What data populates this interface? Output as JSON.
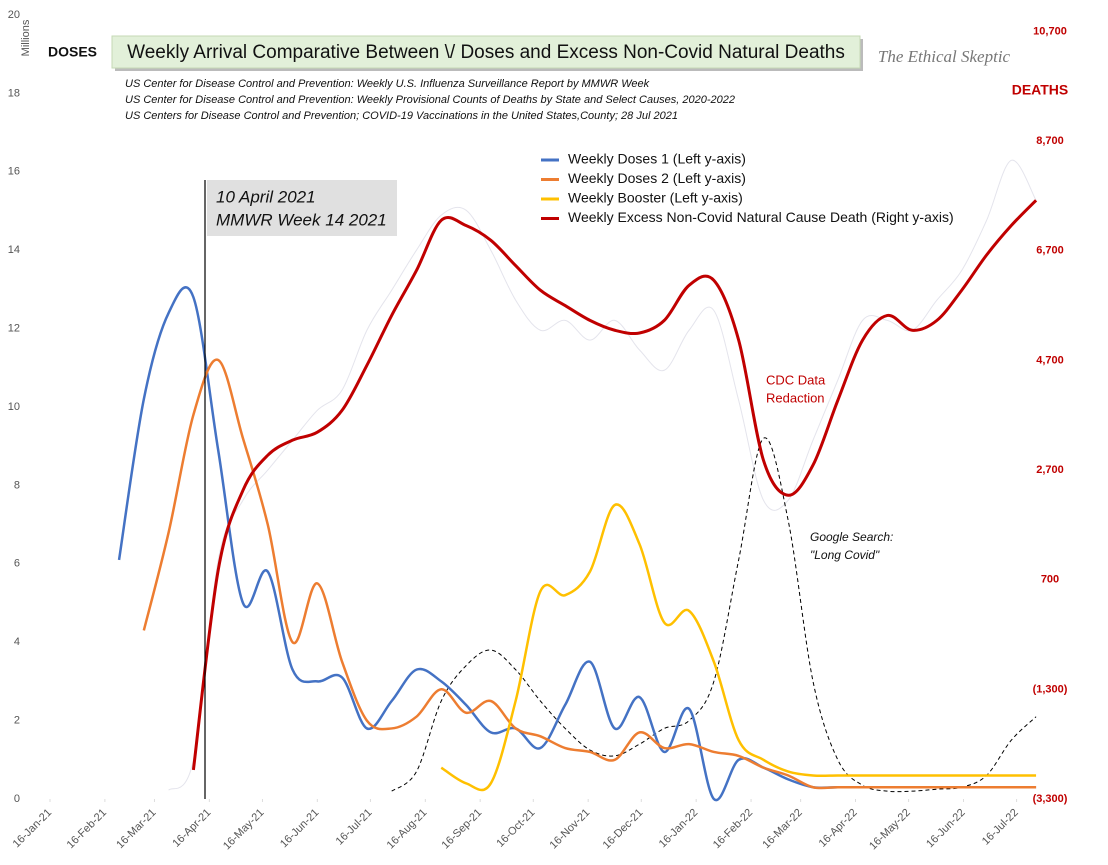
{
  "chart_data": {
    "type": "line",
    "title": "Weekly Arrival Comparative Between \\/ Doses and Excess Non-Covid Natural Deaths",
    "watermark": "The Ethical Skeptic",
    "sources": [
      "US Center for Disease Control and Prevention: Weekly U.S. Influenza Surveillance Report by MMWR Week",
      "US Center for Disease Control and Prevention: Weekly Provisional Counts of Deaths by State and Select Causes, 2020-2022",
      "US Centers for Disease Control and Prevention; COVID-19 Vaccinations in the United States,County; 28 Jul 2021"
    ],
    "y_unit": "Millions",
    "y_axis_label": "DOSES",
    "y2_axis_label": "DEATHS",
    "annotations": {
      "week_box": [
        "10 April 2021",
        "MMWR Week 14 2021"
      ],
      "redaction": [
        "CDC Data",
        "Redaction"
      ],
      "google": [
        "Google Search:",
        "\"Long Covid\""
      ]
    },
    "x": [
      "2021-02-24",
      "2021-03-10",
      "2021-03-24",
      "2021-04-07",
      "2021-04-21",
      "2021-05-05",
      "2021-05-19",
      "2021-06-02",
      "2021-06-16",
      "2021-06-30",
      "2021-07-14",
      "2021-07-28",
      "2021-08-11",
      "2021-08-25",
      "2021-09-08",
      "2021-09-22",
      "2021-10-06",
      "2021-10-20",
      "2021-11-03",
      "2021-11-17",
      "2021-12-01",
      "2021-12-15",
      "2021-12-29",
      "2022-01-12",
      "2022-01-26",
      "2022-02-09",
      "2022-02-23",
      "2022-03-09",
      "2022-03-23",
      "2022-04-06",
      "2022-04-20",
      "2022-05-04",
      "2022-05-18",
      "2022-06-01",
      "2022-06-15",
      "2022-06-29",
      "2022-07-13",
      "2022-07-27"
    ],
    "xlim": [
      "2021-01-03",
      "2022-08-05"
    ],
    "xticks": [
      {
        "value": "2021-01-16",
        "label": "16-Jan-21"
      },
      {
        "value": "2021-02-16",
        "label": "16-Feb-21"
      },
      {
        "value": "2021-03-16",
        "label": "16-Mar-21"
      },
      {
        "value": "2021-04-16",
        "label": "16-Apr-21"
      },
      {
        "value": "2021-05-16",
        "label": "16-May-21"
      },
      {
        "value": "2021-06-16",
        "label": "16-Jun-21"
      },
      {
        "value": "2021-07-16",
        "label": "16-Jul-21"
      },
      {
        "value": "2021-08-16",
        "label": "16-Aug-21"
      },
      {
        "value": "2021-09-16",
        "label": "16-Sep-21"
      },
      {
        "value": "2021-10-16",
        "label": "16-Oct-21"
      },
      {
        "value": "2021-11-16",
        "label": "16-Nov-21"
      },
      {
        "value": "2021-12-16",
        "label": "16-Dec-21"
      },
      {
        "value": "2022-01-16",
        "label": "16-Jan-22"
      },
      {
        "value": "2022-02-16",
        "label": "16-Feb-22"
      },
      {
        "value": "2022-03-16",
        "label": "16-Mar-22"
      },
      {
        "value": "2022-04-16",
        "label": "16-Apr-22"
      },
      {
        "value": "2022-05-16",
        "label": "16-May-22"
      },
      {
        "value": "2022-06-16",
        "label": "16-Jun-22"
      },
      {
        "value": "2022-07-16",
        "label": "16-Jul-22"
      }
    ],
    "ylim": [
      0,
      20
    ],
    "yticks": [
      0,
      2,
      4,
      6,
      8,
      10,
      12,
      14,
      16,
      18,
      20
    ],
    "y2lim": [
      -3300,
      11000
    ],
    "y2ticks": [
      {
        "value": -3300,
        "label": "(3,300)"
      },
      {
        "value": -1300,
        "label": "(1,300)"
      },
      700,
      {
        "value": 2700,
        "label": "2,700"
      },
      {
        "value": 4700,
        "label": "4,700"
      },
      {
        "value": 6700,
        "label": "6,700"
      },
      {
        "value": 8700,
        "label": "8,700"
      },
      {
        "value": 10700,
        "label": "10,700"
      }
    ],
    "series": [
      {
        "color": "#e4e4ec",
        "axis": "y2",
        "values": [
          null,
          null,
          -3140,
          -2590,
          1060,
          2150,
          2700,
          3245,
          3790,
          4160,
          5250,
          5980,
          6710,
          7350,
          7440,
          6710,
          5800,
          5250,
          5430,
          5070,
          5430,
          4890,
          4520,
          5250,
          5610,
          3970,
          2150,
          2150,
          3245,
          4340,
          5430,
          5430,
          5250,
          5800,
          6340,
          7250,
          8350,
          7620
        ]
      },
      {
        "color": "#000000",
        "dashed": true,
        "values": [
          null,
          null,
          null,
          null,
          null,
          null,
          null,
          null,
          null,
          null,
          null,
          0.2,
          0.7,
          2.5,
          3.4,
          3.8,
          3.3,
          2.5,
          1.8,
          1.25,
          1.1,
          1.4,
          1.8,
          2.0,
          3.0,
          6.1,
          9.2,
          7.1,
          3.0,
          1.0,
          0.35,
          0.2,
          0.2,
          0.25,
          0.3,
          0.6,
          1.5,
          2.1
        ]
      },
      {
        "name": "Weekly Doses 1 (Left y-axis)",
        "color": "#4472c4",
        "values": [
          6.1,
          10.2,
          12.4,
          12.8,
          8.9,
          5.0,
          5.8,
          3.3,
          3.0,
          3.1,
          1.8,
          2.5,
          3.3,
          3.0,
          2.4,
          1.7,
          1.8,
          1.3,
          2.4,
          3.5,
          1.8,
          2.6,
          1.2,
          2.3,
          0,
          1.0,
          0.8,
          0.5,
          0.3,
          0.3,
          0.3,
          0.3,
          0.3,
          0.3,
          0.3,
          0.3,
          0.3,
          0.3
        ]
      },
      {
        "name": "Weekly Doses 2 (Left y-axis)",
        "color": "#ed7d31",
        "values": [
          null,
          4.3,
          6.8,
          9.8,
          11.2,
          9.2,
          7.0,
          4.0,
          5.5,
          3.5,
          2.0,
          1.8,
          2.1,
          2.8,
          2.2,
          2.5,
          1.8,
          1.6,
          1.3,
          1.2,
          1.0,
          1.7,
          1.3,
          1.4,
          1.2,
          1.1,
          0.8,
          0.6,
          0.3,
          0.3,
          0.3,
          0.3,
          0.3,
          0.3,
          0.3,
          0.3,
          0.3,
          0.3
        ]
      },
      {
        "name": "Weekly Booster (Left y-axis)",
        "color": "#ffc000",
        "values": [
          null,
          null,
          null,
          null,
          null,
          null,
          null,
          null,
          null,
          null,
          null,
          null,
          null,
          0.8,
          0.4,
          0.4,
          2.5,
          5.3,
          5.2,
          5.8,
          7.5,
          6.5,
          4.5,
          4.8,
          3.5,
          1.5,
          1.0,
          0.7,
          0.6,
          0.6,
          0.6,
          0.6,
          0.6,
          0.6,
          0.6,
          0.6,
          0.6,
          0.6
        ]
      },
      {
        "name": "Weekly Excess Non-Covid Natural Cause Death (Right y-axis)",
        "color": "#c00000",
        "axis": "y2",
        "values": [
          null,
          null,
          null,
          -2770,
          875,
          2330,
          2970,
          3245,
          3390,
          3790,
          4610,
          5520,
          6340,
          7255,
          7160,
          6890,
          6430,
          5980,
          5700,
          5430,
          5250,
          5200,
          5430,
          6070,
          6160,
          5070,
          2880,
          2240,
          2790,
          3970,
          5070,
          5520,
          5250,
          5430,
          5980,
          6620,
          7160,
          7620
        ]
      }
    ]
  }
}
